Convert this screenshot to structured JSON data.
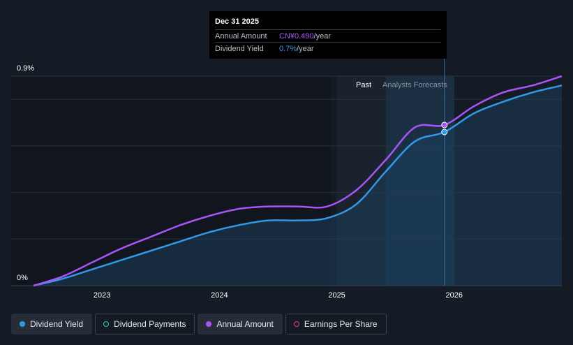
{
  "chart_data": {
    "type": "line",
    "x": [
      "2022-06",
      "2022-09",
      "2022-12",
      "2023-03",
      "2023-06",
      "2023-09",
      "2023-12",
      "2024-03",
      "2024-06",
      "2024-09",
      "2024-12",
      "2025-03",
      "2025-06",
      "2025-09",
      "2025-12",
      "2026-03",
      "2026-06",
      "2026-09",
      "2026-12"
    ],
    "series": [
      {
        "name": "Dividend Yield",
        "color": "#2f9ae8",
        "values": [
          0.0,
          0.03,
          0.07,
          0.11,
          0.15,
          0.19,
          0.23,
          0.26,
          0.28,
          0.28,
          0.29,
          0.35,
          0.49,
          0.62,
          0.66,
          0.74,
          0.79,
          0.83,
          0.86
        ]
      },
      {
        "name": "Annual Amount",
        "color": "#a855f7",
        "values": [
          0.0,
          0.04,
          0.1,
          0.16,
          0.21,
          0.26,
          0.3,
          0.33,
          0.34,
          0.34,
          0.34,
          0.41,
          0.54,
          0.68,
          0.69,
          0.77,
          0.83,
          0.86,
          0.9
        ]
      }
    ],
    "y_axis": {
      "ticks": [
        "0.9%",
        "0%"
      ],
      "range": [
        0,
        0.9
      ],
      "unit": "%"
    },
    "x_axis": {
      "ticks": [
        "2023",
        "2024",
        "2025",
        "2026"
      ],
      "range": [
        "2022-06",
        "2026-12"
      ]
    },
    "regions": {
      "past_label": "Past",
      "forecast_label": "Analysts Forecasts",
      "past_start": "2025-01",
      "forecast_start": "2025-06",
      "forecast_end": "2026-01"
    },
    "highlight_x": "2025-12"
  },
  "tooltip": {
    "date": "Dec 31 2025",
    "rows": [
      {
        "label": "Annual Amount",
        "value": "CN¥0.490",
        "unit": "/year"
      },
      {
        "label": "Dividend Yield",
        "value": "0.7%",
        "unit": "/year"
      }
    ]
  },
  "legend": [
    {
      "label": "Dividend Yield",
      "color": "#2f9ae8",
      "active": true,
      "hollow": false
    },
    {
      "label": "Dividend Payments",
      "color": "#35d0b5",
      "active": false,
      "hollow": true
    },
    {
      "label": "Annual Amount",
      "color": "#a855f7",
      "active": true,
      "hollow": false
    },
    {
      "label": "Earnings Per Share",
      "color": "#d5418b",
      "active": false,
      "hollow": true
    }
  ],
  "colors": {
    "background": "#151b24",
    "past_band": "#19222d",
    "forecast_band": "#1a2f42",
    "grid": "#2a313b"
  }
}
